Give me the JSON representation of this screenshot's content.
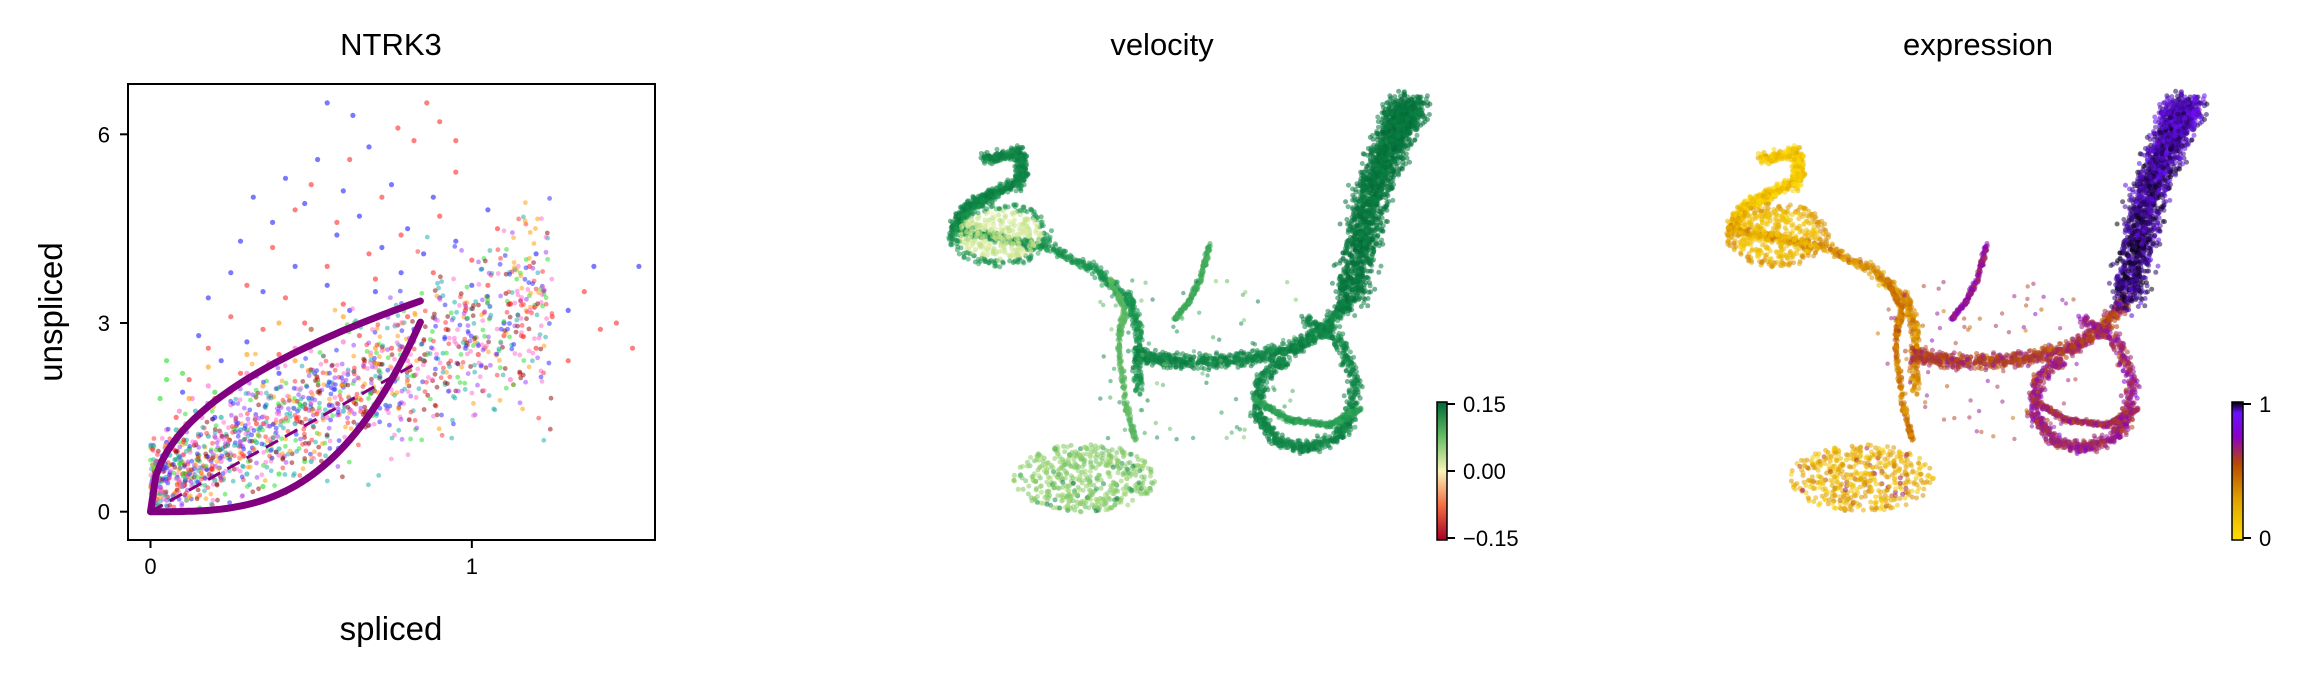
{
  "chart_data": [
    {
      "type": "scatter",
      "title": "NTRK3",
      "xlabel": "spliced",
      "ylabel": "unspliced",
      "xlim": [
        -0.07,
        1.57
      ],
      "ylim": [
        -0.45,
        6.8
      ],
      "xticks": [
        0,
        1
      ],
      "yticks": [
        0,
        3,
        6
      ],
      "xtick_labels": [
        "0",
        "1"
      ],
      "ytick_labels": [
        "0",
        "3",
        "6"
      ],
      "point_colors": [
        "#ff2a2a",
        "#1f1fff",
        "#ff66cc",
        "#22dd22",
        "#ff9900",
        "#11aaaa",
        "#9933ff",
        "#8b0000"
      ],
      "fit_curve_color": "#800080",
      "steady_state_slope": 2.85,
      "steady_state_line_range": [
        0,
        0.83
      ],
      "fit_curve_tip": [
        0.84,
        3.35
      ],
      "series": [
        {
          "name": "",
          "points": [
            [
              0.02,
              0.2
            ],
            [
              0.05,
              0.9
            ],
            [
              0.08,
              1.5
            ],
            [
              0.1,
              0.6
            ],
            [
              0.12,
              2.1
            ],
            [
              0.15,
              1.2
            ],
            [
              0.18,
              2.6
            ],
            [
              0.2,
              1.8
            ],
            [
              0.22,
              0.5
            ],
            [
              0.25,
              3.1
            ],
            [
              0.28,
              2.2
            ],
            [
              0.3,
              3.6
            ],
            [
              0.33,
              1.4
            ],
            [
              0.35,
              2.9
            ],
            [
              0.38,
              4.2
            ],
            [
              0.4,
              2.5
            ],
            [
              0.42,
              3.4
            ],
            [
              0.45,
              4.8
            ],
            [
              0.48,
              3.0
            ],
            [
              0.5,
              5.2
            ],
            [
              0.52,
              2.1
            ],
            [
              0.55,
              3.9
            ],
            [
              0.58,
              4.6
            ],
            [
              0.6,
              3.3
            ],
            [
              0.62,
              5.6
            ],
            [
              0.65,
              2.8
            ],
            [
              0.68,
              4.1
            ],
            [
              0.7,
              3.7
            ],
            [
              0.72,
              5.0
            ],
            [
              0.75,
              2.6
            ],
            [
              0.78,
              4.4
            ],
            [
              0.8,
              3.1
            ],
            [
              0.82,
              5.9
            ],
            [
              0.85,
              2.4
            ],
            [
              0.88,
              3.8
            ],
            [
              0.9,
              4.7
            ],
            [
              0.92,
              2.9
            ],
            [
              0.95,
              5.4
            ],
            [
              0.98,
              3.2
            ],
            [
              1.0,
              4.0
            ],
            [
              1.02,
              2.5
            ],
            [
              1.05,
              3.6
            ],
            [
              1.08,
              4.5
            ],
            [
              1.1,
              2.8
            ],
            [
              1.12,
              3.3
            ],
            [
              1.15,
              2.2
            ],
            [
              1.18,
              3.9
            ],
            [
              1.2,
              2.6
            ],
            [
              1.25,
              3.1
            ],
            [
              1.3,
              2.4
            ],
            [
              1.35,
              3.5
            ],
            [
              1.4,
              2.9
            ],
            [
              1.45,
              3.0
            ],
            [
              1.5,
              2.6
            ],
            [
              0.86,
              6.5
            ],
            [
              0.9,
              6.2
            ],
            [
              0.77,
              6.1
            ],
            [
              0.95,
              5.9
            ]
          ]
        },
        {
          "name": "",
          "points": [
            [
              0.05,
              1.1
            ],
            [
              0.1,
              1.9
            ],
            [
              0.15,
              2.8
            ],
            [
              0.18,
              3.4
            ],
            [
              0.2,
              1.5
            ],
            [
              0.22,
              2.4
            ],
            [
              0.25,
              3.8
            ],
            [
              0.28,
              4.3
            ],
            [
              0.3,
              2.7
            ],
            [
              0.32,
              5.0
            ],
            [
              0.35,
              3.5
            ],
            [
              0.38,
              4.6
            ],
            [
              0.4,
              2.2
            ],
            [
              0.42,
              5.3
            ],
            [
              0.45,
              3.9
            ],
            [
              0.48,
              4.9
            ],
            [
              0.5,
              2.9
            ],
            [
              0.52,
              5.6
            ],
            [
              0.55,
              3.6
            ],
            [
              0.58,
              4.4
            ],
            [
              0.6,
              5.1
            ],
            [
              0.62,
              3.2
            ],
            [
              0.65,
              4.7
            ],
            [
              0.68,
              5.8
            ],
            [
              0.7,
              3.5
            ],
            [
              0.72,
              4.2
            ],
            [
              0.75,
              5.2
            ],
            [
              0.78,
              3.8
            ],
            [
              0.8,
              4.5
            ],
            [
              0.82,
              2.9
            ],
            [
              0.85,
              4.1
            ],
            [
              0.88,
              5.0
            ],
            [
              0.9,
              3.4
            ],
            [
              0.95,
              4.3
            ],
            [
              1.0,
              3.6
            ],
            [
              1.05,
              4.8
            ],
            [
              1.1,
              3.0
            ],
            [
              1.2,
              4.1
            ],
            [
              1.3,
              3.2
            ],
            [
              1.38,
              3.9
            ],
            [
              1.52,
              3.9
            ],
            [
              0.55,
              6.5
            ],
            [
              0.63,
              6.3
            ]
          ]
        },
        {
          "name": "",
          "points": [
            [
              0.01,
              0.1
            ],
            [
              0.02,
              0.4
            ],
            [
              0.03,
              0.8
            ],
            [
              0.04,
              0.2
            ],
            [
              0.05,
              1.3
            ],
            [
              0.06,
              0.6
            ],
            [
              0.07,
              1.0
            ],
            [
              0.08,
              0.3
            ],
            [
              0.09,
              1.6
            ],
            [
              0.1,
              0.9
            ],
            [
              0.11,
              1.4
            ],
            [
              0.12,
              0.5
            ],
            [
              0.13,
              1.8
            ],
            [
              0.14,
              1.1
            ],
            [
              0.15,
              0.7
            ],
            [
              0.16,
              1.5
            ],
            [
              0.18,
              2.0
            ],
            [
              0.2,
              1.2
            ],
            [
              0.22,
              0.8
            ],
            [
              0.25,
              1.7
            ],
            [
              0.28,
              1.1
            ],
            [
              0.3,
              2.2
            ],
            [
              0.35,
              1.4
            ],
            [
              0.4,
              0.9
            ],
            [
              0.45,
              2.6
            ],
            [
              0.5,
              1.9
            ],
            [
              0.55,
              1.5
            ],
            [
              0.6,
              2.7
            ],
            [
              0.7,
              2.3
            ],
            [
              0.8,
              2.4
            ],
            [
              1.12,
              2.1
            ]
          ]
        },
        {
          "name": "",
          "points": [
            [
              0.03,
              1.8
            ],
            [
              0.05,
              2.1
            ],
            [
              0.05,
              2.4
            ],
            [
              0.1,
              2.2
            ],
            [
              0.2,
              1.9
            ],
            [
              0.3,
              1.3
            ],
            [
              0.4,
              0.6
            ],
            [
              0.42,
              0.3
            ],
            [
              0.48,
              0.8
            ],
            [
              0.35,
              0.4
            ],
            [
              0.15,
              0.9
            ]
          ]
        },
        {
          "name": "",
          "points": [
            [
              0.08,
              1.2
            ],
            [
              0.12,
              1.8
            ],
            [
              0.18,
              2.3
            ],
            [
              0.25,
              1.9
            ],
            [
              0.3,
              2.5
            ],
            [
              0.35,
              2.0
            ],
            [
              0.4,
              3.0
            ],
            [
              0.45,
              2.4
            ],
            [
              0.5,
              2.9
            ],
            [
              0.55,
              2.2
            ],
            [
              0.6,
              3.1
            ],
            [
              0.65,
              1.8
            ],
            [
              0.7,
              2.6
            ]
          ]
        },
        {
          "name": "",
          "points": [
            [
              0.04,
              0.5
            ],
            [
              0.06,
              0.9
            ],
            [
              0.08,
              1.3
            ],
            [
              0.1,
              0.4
            ],
            [
              0.12,
              1.0
            ],
            [
              0.14,
              1.6
            ],
            [
              0.16,
              0.7
            ],
            [
              0.18,
              1.2
            ],
            [
              0.2,
              0.5
            ],
            [
              0.22,
              1.5
            ],
            [
              0.25,
              0.9
            ],
            [
              0.28,
              1.3
            ],
            [
              0.3,
              0.6
            ],
            [
              0.33,
              1.1
            ],
            [
              0.36,
              1.7
            ],
            [
              0.4,
              1.0
            ],
            [
              0.45,
              1.4
            ],
            [
              0.5,
              0.8
            ],
            [
              0.55,
              1.2
            ],
            [
              0.6,
              1.6
            ]
          ]
        }
      ]
    },
    {
      "type": "scatter",
      "title": "velocity",
      "colorbar": {
        "ticks": [
          0.15,
          0.0,
          -0.15
        ],
        "tick_labels": [
          "0.15",
          "0.00",
          "−0.15"
        ],
        "range": [
          -0.15,
          0.15
        ],
        "cmap": [
          "#a50026",
          "#f7f4b9",
          "#006837"
        ]
      }
    },
    {
      "type": "scatter",
      "title": "expression",
      "colorbar": {
        "ticks": [
          1,
          0
        ],
        "tick_labels": [
          "1",
          "0"
        ],
        "range": [
          0,
          1
        ],
        "cmap": [
          "#ffe000",
          "#e0a000",
          "#b84a00",
          "#8a00c8",
          "#6a10ff",
          "#000000"
        ]
      }
    }
  ]
}
